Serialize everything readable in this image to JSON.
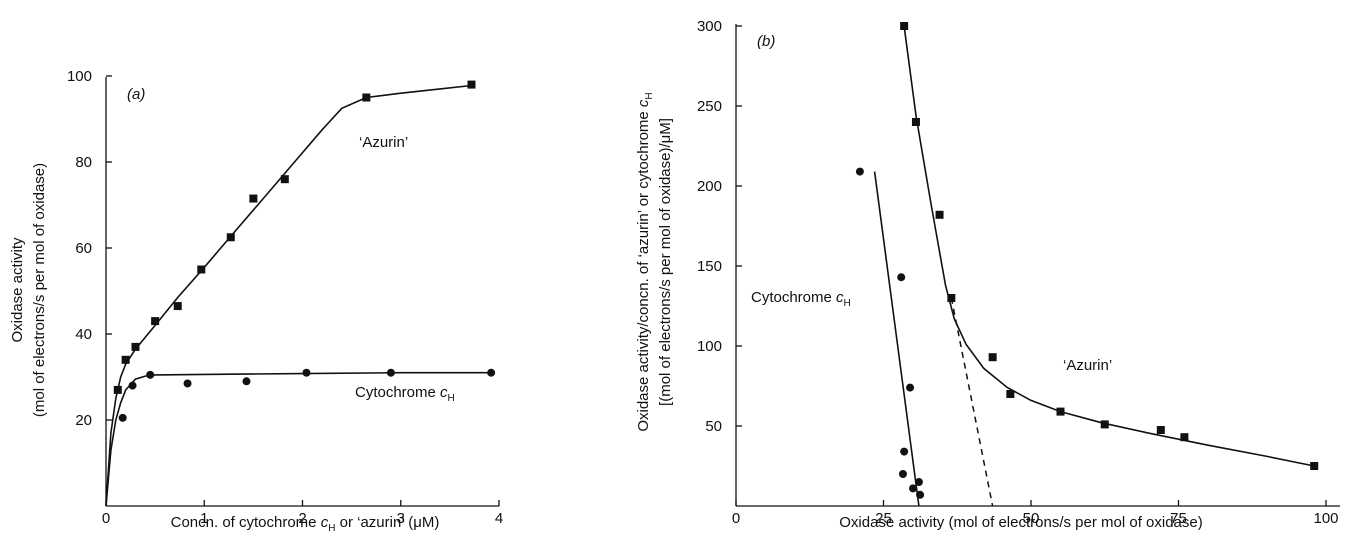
{
  "figure": {
    "panel_a_tag": "(a)",
    "panel_b_tag": "(b)",
    "panel_a_ylabel_line1": "Oxidase activity",
    "panel_a_ylabel_line2": "(mol of electrons/s per mol of oxidase)",
    "panel_a_xlabel_pre": "Concn. of cytochrome ",
    "panel_a_xlabel_c": "c",
    "panel_a_xlabel_sub": "H",
    "panel_a_xlabel_post": " or ‘azurin’ (μM)",
    "panel_a_label_azurin": "‘Azurin’",
    "panel_a_label_cyt": "Cytochrome ",
    "panel_a_label_cyt_c": "c",
    "panel_a_label_cyt_sub": "H",
    "panel_b_ylabel_line1_pre": "Oxidase activity/concn. of ‘azurin’ or cytochrome ",
    "panel_b_ylabel_line1_c": "c",
    "panel_b_ylabel_line1_sub": "H",
    "panel_b_ylabel_line2": "[(mol of electrons/s per mol of oxidase)/μM]",
    "panel_b_xlabel": "Oxidase activity (mol of electrons/s per mol of oxidase)",
    "panel_b_label_azurin": "‘Azurin’",
    "panel_b_label_cyt": "Cytochrome ",
    "panel_b_label_cyt_c": "c",
    "panel_b_label_cyt_sub": "H"
  },
  "chart_data": [
    {
      "type": "scatter",
      "panel": "(a)",
      "xlabel": "Concn. of cytochrome cH or ‘azurin’ (μM)",
      "ylabel": "Oxidase activity (mol of electrons/s per mol of oxidase)",
      "xlim": [
        0,
        4
      ],
      "ylim": [
        0,
        100
      ],
      "xticks": [
        0,
        1,
        2,
        3,
        4
      ],
      "yticks": [
        20,
        40,
        60,
        80,
        100
      ],
      "series": [
        {
          "name": "‘Azurin’",
          "marker": "square",
          "x": [
            0.12,
            0.2,
            0.3,
            0.5,
            0.73,
            0.97,
            1.27,
            1.5,
            1.82,
            2.65,
            3.72
          ],
          "y": [
            27,
            34,
            37,
            43,
            46.5,
            55,
            62.5,
            71.5,
            76,
            95,
            98
          ],
          "curve_x": [
            0,
            0.05,
            0.1,
            0.15,
            0.2,
            0.3,
            0.5,
            0.73,
            1.0,
            1.3,
            1.6,
            1.9,
            2.2,
            2.4,
            2.65,
            3.0,
            3.4,
            3.72
          ],
          "curve_y": [
            0,
            17,
            25,
            30,
            33,
            36.5,
            42,
            48.5,
            55.5,
            63.5,
            71.5,
            79.5,
            87.5,
            92.5,
            95,
            96,
            97,
            97.8
          ]
        },
        {
          "name": "Cytochrome cH",
          "marker": "circle",
          "x": [
            0.17,
            0.27,
            0.45,
            0.83,
            1.43,
            2.04,
            2.9,
            3.92
          ],
          "y": [
            20.5,
            28,
            30.5,
            28.5,
            29,
            31,
            31,
            31
          ],
          "curve_x": [
            0,
            0.05,
            0.1,
            0.15,
            0.2,
            0.3,
            0.4,
            0.5,
            1.0,
            2.0,
            3.0,
            3.92
          ],
          "curve_y": [
            0,
            13,
            20,
            24,
            27,
            29.5,
            30.2,
            30.5,
            30.6,
            30.8,
            31,
            31
          ]
        }
      ]
    },
    {
      "type": "scatter",
      "panel": "(b)",
      "xlabel": "Oxidase activity (mol of electrons/s per mol of oxidase)",
      "ylabel": "Oxidase activity/concn. of ‘azurin’ or cytochrome cH [(mol of electrons/s per mol of oxidase)/μM]",
      "xlim": [
        0,
        100
      ],
      "ylim": [
        0,
        300
      ],
      "xticks": [
        0,
        25,
        50,
        75,
        100
      ],
      "yticks": [
        50,
        100,
        150,
        200,
        250,
        300
      ],
      "series": [
        {
          "name": "‘Azurin’",
          "marker": "square",
          "x": [
            28.5,
            30.5,
            34.5,
            36.5,
            43.5,
            46.5,
            55,
            62.5,
            72,
            76,
            98
          ],
          "y": [
            300,
            240,
            182,
            130,
            93,
            70,
            59,
            51,
            47.5,
            43,
            25
          ],
          "curve_x": [
            28.5,
            30.5,
            33,
            35.5,
            37,
            39,
            42,
            46,
            50,
            55,
            62,
            70,
            80,
            90,
            98
          ],
          "curve_y": [
            300,
            244,
            190,
            138,
            117,
            101,
            86,
            74,
            66,
            59,
            52,
            45.5,
            38,
            31,
            25
          ]
        },
        {
          "name": "Cytochrome cH",
          "marker": "circle",
          "x": [
            21,
            28,
            29.5,
            28.5,
            28.3,
            30,
            31,
            31.2
          ],
          "y": [
            209,
            143,
            74,
            34,
            20,
            11,
            15,
            7
          ],
          "curve_x": [
            23.5,
            31
          ],
          "curve_y": [
            209,
            0
          ]
        },
        {
          "name": "extrapolation",
          "style": "dashed",
          "curve_x": [
            36.5,
            43.5
          ],
          "curve_y": [
            130,
            0
          ]
        }
      ]
    }
  ]
}
